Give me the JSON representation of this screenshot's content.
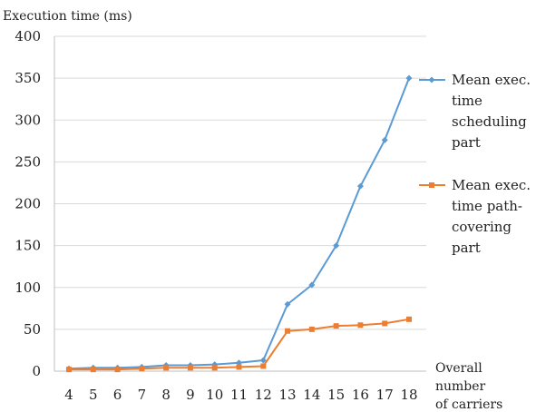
{
  "chart_data": {
    "type": "line",
    "title": "",
    "ylabel": "Execution time (ms)",
    "xlabel_lines": [
      "Overall",
      "number",
      "of carriers"
    ],
    "categories": [
      "4",
      "5",
      "6",
      "7",
      "8",
      "9",
      "10",
      "11",
      "12",
      "13",
      "14",
      "15",
      "16",
      "17",
      "18"
    ],
    "ylim": [
      0,
      400
    ],
    "yticks": [
      "0",
      "50",
      "100",
      "150",
      "200",
      "250",
      "300",
      "350",
      "400"
    ],
    "grid": true,
    "legend_position": "right",
    "series": [
      {
        "name_lines": [
          "Mean exec.",
          "time",
          "scheduling",
          "part"
        ],
        "color": "#5b9bd5",
        "marker": "diamond",
        "values": [
          3,
          4,
          4,
          5,
          7,
          7,
          8,
          10,
          13,
          80,
          103,
          150,
          221,
          276,
          350
        ]
      },
      {
        "name_lines": [
          "Mean exec.",
          "time path-",
          "covering",
          "part"
        ],
        "color": "#ed7d31",
        "marker": "square",
        "values": [
          2,
          2,
          2,
          3,
          4,
          4,
          4,
          5,
          6,
          48,
          50,
          54,
          55,
          57,
          62
        ]
      }
    ]
  }
}
